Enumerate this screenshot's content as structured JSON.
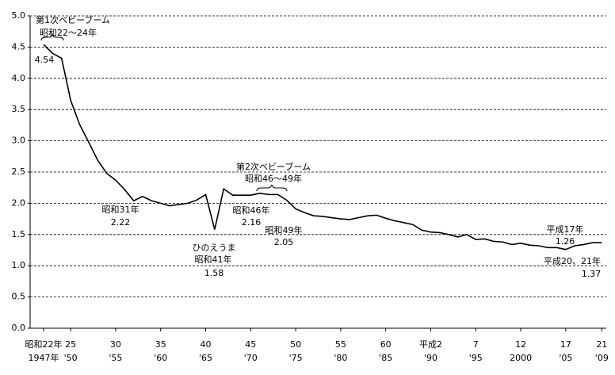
{
  "chart_data": {
    "type": "line",
    "x": [
      1947,
      1948,
      1949,
      1950,
      1951,
      1952,
      1953,
      1954,
      1955,
      1956,
      1957,
      1958,
      1959,
      1960,
      1961,
      1962,
      1963,
      1964,
      1965,
      1966,
      1967,
      1968,
      1969,
      1970,
      1971,
      1972,
      1973,
      1974,
      1975,
      1976,
      1977,
      1978,
      1979,
      1980,
      1981,
      1982,
      1983,
      1984,
      1985,
      1986,
      1987,
      1988,
      1989,
      1990,
      1991,
      1992,
      1993,
      1994,
      1995,
      1996,
      1997,
      1998,
      1999,
      2000,
      2001,
      2002,
      2003,
      2004,
      2005,
      2006,
      2007,
      2008,
      2009
    ],
    "series": [
      {
        "color": "#000000",
        "values": [
          4.54,
          4.4,
          4.32,
          3.65,
          3.26,
          2.98,
          2.69,
          2.48,
          2.37,
          2.22,
          2.04,
          2.11,
          2.04,
          2.0,
          1.96,
          1.98,
          2.0,
          2.05,
          2.14,
          1.58,
          2.23,
          2.13,
          2.13,
          2.13,
          2.16,
          2.14,
          2.14,
          2.05,
          1.91,
          1.85,
          1.8,
          1.79,
          1.77,
          1.75,
          1.74,
          1.77,
          1.8,
          1.81,
          1.76,
          1.72,
          1.69,
          1.66,
          1.57,
          1.54,
          1.53,
          1.5,
          1.46,
          1.5,
          1.42,
          1.43,
          1.39,
          1.38,
          1.34,
          1.36,
          1.33,
          1.32,
          1.29,
          1.29,
          1.26,
          1.32,
          1.34,
          1.37,
          1.37
        ]
      }
    ],
    "xlim": [
      1945.5,
      2009.5
    ],
    "xticks": [
      {
        "value": 1947,
        "label": "昭和22年",
        "sublabel": "1947年"
      },
      {
        "value": 1950,
        "label": "25",
        "sublabel": "'50"
      },
      {
        "value": 1955,
        "label": "30",
        "sublabel": "'55"
      },
      {
        "value": 1960,
        "label": "35",
        "sublabel": "'60"
      },
      {
        "value": 1965,
        "label": "40",
        "sublabel": "'65"
      },
      {
        "value": 1970,
        "label": "45",
        "sublabel": "'70"
      },
      {
        "value": 1975,
        "label": "50",
        "sublabel": "'75"
      },
      {
        "value": 1980,
        "label": "55",
        "sublabel": "'80"
      },
      {
        "value": 1985,
        "label": "60",
        "sublabel": "'85"
      },
      {
        "value": 1990,
        "label": "平成2",
        "sublabel": "'90"
      },
      {
        "value": 1995,
        "label": "7",
        "sublabel": "'95"
      },
      {
        "value": 2000,
        "label": "12",
        "sublabel": "2000"
      },
      {
        "value": 2005,
        "label": "17",
        "sublabel": "'05"
      },
      {
        "value": 2009,
        "label": "21",
        "sublabel": "'09"
      }
    ],
    "ylim": [
      0,
      5
    ],
    "yticks": [
      {
        "value": 0,
        "label": "0.0"
      },
      {
        "value": 0.5,
        "label": "0.5"
      },
      {
        "value": 1,
        "label": "1.0"
      },
      {
        "value": 1.5,
        "label": "1.5"
      },
      {
        "value": 2,
        "label": "2.0"
      },
      {
        "value": 2.5,
        "label": "2.5"
      },
      {
        "value": 3,
        "label": "3.0"
      },
      {
        "value": 3.5,
        "label": "3.5"
      },
      {
        "value": 4,
        "label": "4.0"
      },
      {
        "value": 4.5,
        "label": "4.5"
      },
      {
        "value": 5,
        "label": "5.0"
      }
    ],
    "grid": true,
    "annotations": [
      "第1次ベビーブーム",
      "昭和22〜24年",
      "4.54",
      "昭和31年",
      "2.22",
      "ひのえうま",
      "昭和41年",
      "1.58",
      "第2次ベビーブーム",
      "昭和46〜49年",
      "昭和46年",
      "2.16",
      "昭和49年",
      "2.05",
      "平成17年",
      "1.26",
      "平成20、21年",
      "1.37"
    ]
  }
}
